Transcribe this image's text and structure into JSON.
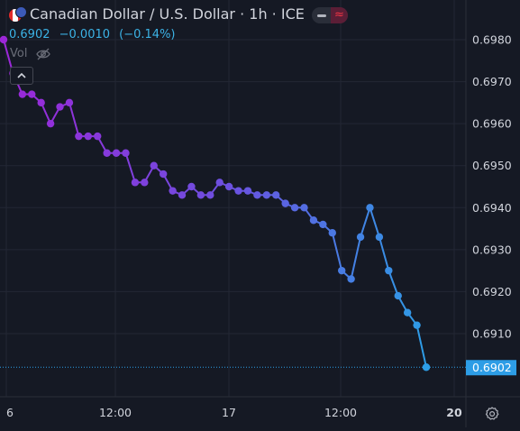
{
  "header": {
    "title": "Canadian Dollar / U.S. Dollar · 1h · ICE",
    "last_price": "0.6902",
    "change": "−0.0010",
    "change_percent": "(−0.14%)",
    "volume_label": "Vol"
  },
  "colors": {
    "background": "#151924",
    "grid": "#232734",
    "axis_text": "#d1d4dc",
    "line_start": "#9c27d8",
    "line_mid": "#6a52e0",
    "line_end": "#2d9de6",
    "price_tag": "#2d9de6",
    "header_price": "#3cb3e6"
  },
  "icons": {
    "flags": "canada-us-flag-icon",
    "volume_visibility": "eye-crossed-icon",
    "collapse": "chevron-up-icon",
    "settings": "gear-icon",
    "compare": "wave-icon"
  },
  "chart_data": {
    "type": "line",
    "title": "Canadian Dollar / U.S. Dollar · 1h · ICE",
    "xlabel": "",
    "ylabel": "",
    "x_tick_labels": [
      "6",
      "12:00",
      "17",
      "12:00",
      "20"
    ],
    "ylim": [
      0.6899,
      0.6989
    ],
    "y_ticks": [
      "0.6910",
      "0.6920",
      "0.6930",
      "0.6940",
      "0.6950",
      "0.6960",
      "0.6970",
      "0.6980"
    ],
    "grid": true,
    "last_price_label": "0.6902",
    "series": [
      {
        "name": "",
        "values": [
          0.698,
          0.6972,
          0.6967,
          0.6967,
          0.6965,
          0.696,
          0.6964,
          0.6965,
          0.6957,
          0.6957,
          0.6957,
          0.6953,
          0.6953,
          0.6953,
          0.6946,
          0.6946,
          0.695,
          0.6948,
          0.6944,
          0.6943,
          0.6945,
          0.6943,
          0.6943,
          0.6946,
          0.6945,
          0.6944,
          0.6944,
          0.6943,
          0.6943,
          0.6943,
          0.6941,
          0.694,
          0.694,
          0.6937,
          0.6936,
          0.6934,
          0.6925,
          0.6923,
          0.6933,
          0.694,
          0.6933,
          0.6925,
          0.6919,
          0.6915,
          0.6912,
          0.6902
        ]
      }
    ]
  }
}
